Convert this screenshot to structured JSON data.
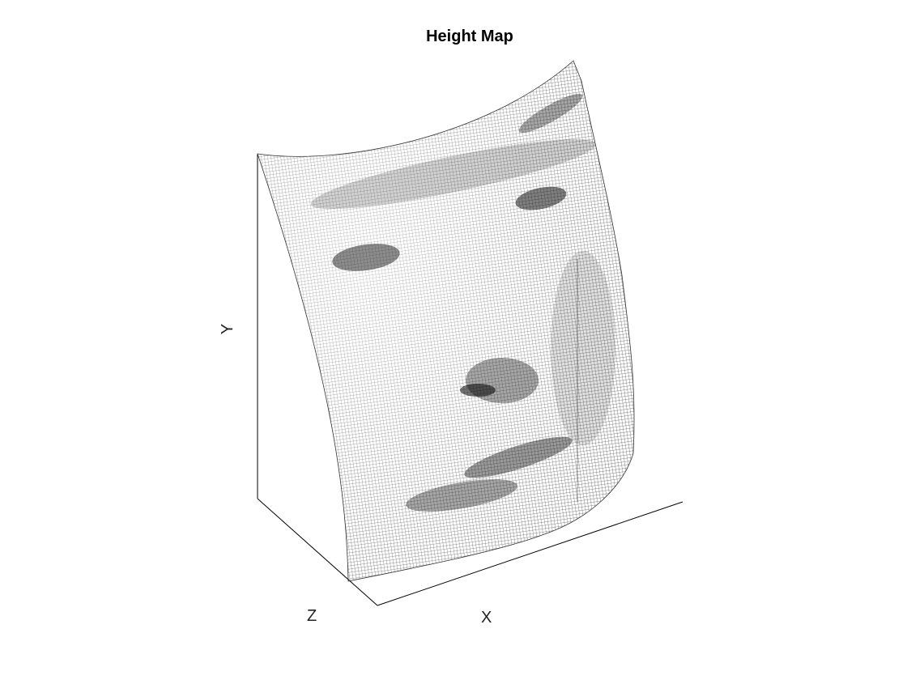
{
  "chart_data": {
    "type": "surface",
    "title": "Height Map",
    "xlabel": "X",
    "ylabel": "Y",
    "zlabel": "Z",
    "render": "wireframe mesh",
    "surface": "face height map",
    "mesh_color": "#000000",
    "background": "#ffffff",
    "axis_color": "#000000",
    "grid": false,
    "ticks": false
  }
}
